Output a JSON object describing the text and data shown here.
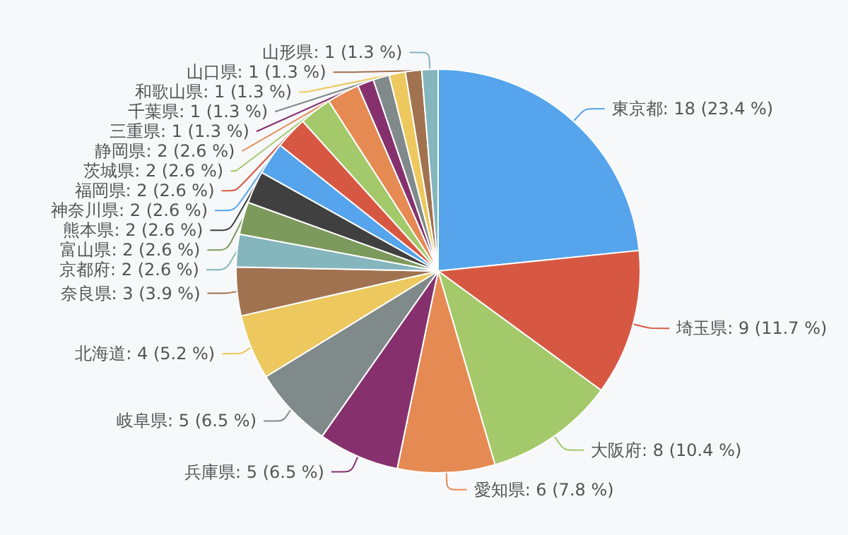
{
  "chart_data": {
    "type": "pie",
    "categories": [
      "東京都",
      "埼玉県",
      "大阪府",
      "愛知県",
      "兵庫県",
      "岐阜県",
      "北海道",
      "奈良県",
      "京都府",
      "富山県",
      "熊本県",
      "神奈川県",
      "福岡県",
      "茨城県",
      "静岡県",
      "三重県",
      "千葉県",
      "和歌山県",
      "山口県",
      "山形県"
    ],
    "values": [
      18,
      9,
      8,
      6,
      5,
      5,
      4,
      3,
      2,
      2,
      2,
      2,
      2,
      2,
      2,
      1,
      1,
      1,
      1,
      1
    ],
    "value_labels": [
      "18 (23.4 %)",
      "9 (11.7 %)",
      "8 (10.4 %)",
      "6 (7.8 %)",
      "5 (6.5 %)",
      "5 (6.5 %)",
      "4 (5.2 %)",
      "3 (3.9 %)",
      "2 (2.6 %)",
      "2 (2.6 %)",
      "2 (2.6 %)",
      "2 (2.6 %)",
      "2 (2.6 %)",
      "2 (2.6 %)",
      "2 (2.6 %)",
      "1 (1.3 %)",
      "1 (1.3 %)",
      "1 (1.3 %)",
      "1 (1.3 %)",
      "1 (1.3 %)"
    ],
    "colors": [
      "#55a4ec",
      "#d75842",
      "#a4c96a",
      "#e68a53",
      "#86316d",
      "#808a8b",
      "#ecc85e",
      "#a17250",
      "#85b5bd",
      "#7d9a5d",
      "#404040",
      "#55a4ec",
      "#d75842",
      "#a4c96a",
      "#e68a53",
      "#86316d",
      "#808a8b",
      "#ecc85e",
      "#a17250",
      "#85b5bd"
    ]
  }
}
